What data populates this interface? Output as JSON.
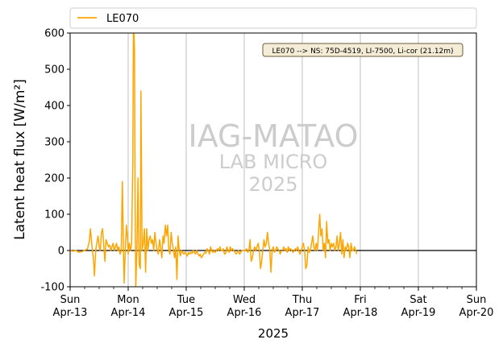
{
  "chart_data": {
    "type": "line",
    "ylabel": "Latent heat flux [W/m²]",
    "xlabel": "2025",
    "ylim": [
      -100,
      600
    ],
    "xlim_days": [
      "2025-04-13",
      "2025-04-20"
    ],
    "grid": "vertical-day-lines",
    "zero_line": 0,
    "legend": {
      "placement": "top-outside",
      "label": "LE070"
    },
    "annotation": "LE070 --> NS: 75D-4519, LI-7500, Li-cor (21.12m)",
    "watermark": [
      "IAG-MATAO",
      "LAB MICRO",
      "2025"
    ],
    "series_color": "#ffa500",
    "yticks": [
      -100,
      0,
      100,
      200,
      300,
      400,
      500,
      600
    ],
    "xticks": [
      {
        "day": "Sun",
        "date": "Apr-13"
      },
      {
        "day": "Mon",
        "date": "Apr-14"
      },
      {
        "day": "Tue",
        "date": "Apr-15"
      },
      {
        "day": "Wed",
        "date": "Apr-16"
      },
      {
        "day": "Thu",
        "date": "Apr-17"
      },
      {
        "day": "Fri",
        "date": "Apr-18"
      },
      {
        "day": "Sat",
        "date": "Apr-19"
      },
      {
        "day": "Sun",
        "date": "Apr-20"
      }
    ],
    "series": [
      {
        "name": "LE070",
        "x_unit": "days since 2025-04-13 00:00",
        "segments": [
          [
            [
              0.0,
              0
            ],
            [
              0.05,
              -2
            ],
            [
              0.1,
              0
            ],
            [
              0.15,
              -5
            ],
            [
              0.2,
              -3
            ],
            [
              0.25,
              0
            ],
            [
              0.3,
              5
            ],
            [
              0.33,
              25
            ],
            [
              0.35,
              60
            ],
            [
              0.38,
              5
            ],
            [
              0.4,
              -20
            ],
            [
              0.42,
              -70
            ],
            [
              0.44,
              0
            ],
            [
              0.46,
              20
            ],
            [
              0.48,
              40
            ],
            [
              0.5,
              10
            ],
            [
              0.52,
              0
            ],
            [
              0.54,
              50
            ],
            [
              0.56,
              60
            ],
            [
              0.58,
              10
            ],
            [
              0.6,
              -30
            ],
            [
              0.62,
              30
            ],
            [
              0.64,
              20
            ],
            [
              0.66,
              10
            ],
            [
              0.68,
              15
            ],
            [
              0.7,
              0
            ],
            [
              0.72,
              10
            ],
            [
              0.74,
              20
            ],
            [
              0.76,
              0
            ],
            [
              0.78,
              10
            ],
            [
              0.8,
              20
            ],
            [
              0.82,
              0
            ],
            [
              0.84,
              10
            ],
            [
              0.86,
              -10
            ],
            [
              0.88,
              0
            ],
            [
              0.9,
              190
            ],
            [
              0.92,
              -5
            ],
            [
              0.93,
              -90
            ],
            [
              0.95,
              0
            ],
            [
              0.97,
              70
            ],
            [
              0.99,
              30
            ],
            [
              1.0,
              -10
            ],
            [
              1.02,
              20
            ],
            [
              1.04,
              0
            ],
            [
              1.06,
              20
            ],
            [
              1.08,
              250
            ],
            [
              1.09,
              600
            ],
            [
              1.1,
              600
            ],
            [
              1.11,
              550
            ],
            [
              1.12,
              150
            ],
            [
              1.13,
              -100
            ],
            [
              1.15,
              0
            ],
            [
              1.17,
              200
            ],
            [
              1.18,
              30
            ],
            [
              1.19,
              -40
            ],
            [
              1.21,
              -50
            ],
            [
              1.22,
              440
            ],
            [
              1.24,
              0
            ],
            [
              1.26,
              20
            ],
            [
              1.28,
              60
            ],
            [
              1.3,
              -60
            ],
            [
              1.32,
              60
            ],
            [
              1.34,
              0
            ],
            [
              1.36,
              30
            ],
            [
              1.38,
              40
            ],
            [
              1.4,
              20
            ],
            [
              1.42,
              30
            ],
            [
              1.44,
              0
            ],
            [
              1.46,
              50
            ],
            [
              1.48,
              20
            ],
            [
              1.5,
              0
            ],
            [
              1.52,
              -10
            ],
            [
              1.54,
              30
            ],
            [
              1.56,
              10
            ],
            [
              1.58,
              -20
            ],
            [
              1.6,
              40
            ],
            [
              1.62,
              20
            ],
            [
              1.64,
              70
            ],
            [
              1.66,
              40
            ],
            [
              1.68,
              70
            ],
            [
              1.7,
              0
            ],
            [
              1.72,
              -10
            ],
            [
              1.74,
              50
            ],
            [
              1.76,
              20
            ],
            [
              1.78,
              0
            ],
            [
              1.8,
              -20
            ],
            [
              1.82,
              10
            ],
            [
              1.84,
              -80
            ],
            [
              1.86,
              40
            ],
            [
              1.88,
              0
            ],
            [
              1.9,
              -15
            ],
            [
              1.92,
              0
            ],
            [
              1.94,
              -5
            ],
            [
              1.96,
              -10
            ],
            [
              1.98,
              -5
            ],
            [
              2.0,
              -10
            ],
            [
              2.02,
              -15
            ],
            [
              2.04,
              -5
            ],
            [
              2.06,
              -10
            ],
            [
              2.08,
              -5
            ],
            [
              2.1,
              -8
            ],
            [
              2.12,
              0
            ],
            [
              2.14,
              -5
            ],
            [
              2.16,
              -10
            ],
            [
              2.18,
              0
            ],
            [
              2.2,
              -8
            ],
            [
              2.22,
              -15
            ],
            [
              2.24,
              -10
            ],
            [
              2.26,
              -20
            ],
            [
              2.28,
              -15
            ],
            [
              2.3,
              -10
            ],
            [
              2.32,
              -5
            ],
            [
              2.34,
              -8
            ],
            [
              2.36,
              5
            ],
            [
              2.38,
              0
            ],
            [
              2.4,
              -10
            ],
            [
              2.42,
              10
            ],
            [
              2.44,
              0
            ],
            [
              2.46,
              -5
            ],
            [
              2.48,
              0
            ],
            [
              2.5,
              -5
            ],
            [
              2.52,
              0
            ],
            [
              2.54,
              5
            ],
            [
              2.56,
              0
            ],
            [
              2.58,
              10
            ],
            [
              2.6,
              0
            ],
            [
              2.62,
              0
            ],
            [
              2.64,
              5
            ],
            [
              2.66,
              -10
            ],
            [
              2.68,
              -8
            ],
            [
              2.7,
              10
            ],
            [
              2.72,
              0
            ],
            [
              2.74,
              -5
            ],
            [
              2.76,
              10
            ],
            [
              2.78,
              0
            ],
            [
              2.8,
              5
            ],
            [
              2.82,
              0
            ],
            [
              2.84,
              -5
            ],
            [
              2.86,
              -10
            ],
            [
              2.88,
              -5
            ],
            [
              2.9,
              0
            ],
            [
              2.92,
              -10
            ],
            [
              2.94,
              -5
            ],
            [
              2.96,
              0
            ],
            [
              2.98,
              0
            ],
            [
              3.0,
              0
            ],
            [
              3.02,
              0
            ],
            [
              3.04,
              5
            ],
            [
              3.06,
              -5
            ],
            [
              3.08,
              0
            ],
            [
              3.1,
              30
            ],
            [
              3.12,
              -30
            ],
            [
              3.14,
              -20
            ],
            [
              3.16,
              0
            ],
            [
              3.18,
              10
            ],
            [
              3.2,
              0
            ],
            [
              3.22,
              10
            ],
            [
              3.24,
              20
            ],
            [
              3.26,
              0
            ],
            [
              3.28,
              -50
            ],
            [
              3.3,
              -30
            ],
            [
              3.32,
              0
            ],
            [
              3.34,
              30
            ],
            [
              3.36,
              10
            ],
            [
              3.38,
              20
            ],
            [
              3.4,
              50
            ],
            [
              3.42,
              20
            ],
            [
              3.44,
              0
            ],
            [
              3.46,
              -60
            ],
            [
              3.48,
              0
            ],
            [
              3.5,
              10
            ],
            [
              3.52,
              -5
            ],
            [
              3.54,
              0
            ],
            [
              3.56,
              10
            ],
            [
              3.58,
              5
            ],
            [
              3.6,
              0
            ],
            [
              3.62,
              -10
            ],
            [
              3.64,
              0
            ]
          ],
          [
            [
              3.66,
              0
            ],
            [
              3.68,
              10
            ],
            [
              3.7,
              0
            ],
            [
              3.72,
              5
            ],
            [
              3.74,
              -5
            ],
            [
              3.76,
              10
            ],
            [
              3.78,
              0
            ],
            [
              3.8,
              5
            ],
            [
              3.82,
              0
            ],
            [
              3.84,
              -5
            ],
            [
              3.86,
              0
            ],
            [
              3.88,
              5
            ],
            [
              3.9,
              0
            ],
            [
              3.92,
              10
            ],
            [
              3.94,
              0
            ],
            [
              3.96,
              -10
            ],
            [
              3.98,
              0
            ],
            [
              4.0,
              10
            ],
            [
              4.02,
              20
            ],
            [
              4.04,
              0
            ],
            [
              4.06,
              -50
            ],
            [
              4.08,
              -40
            ],
            [
              4.1,
              10
            ],
            [
              4.12,
              -5
            ],
            [
              4.14,
              0
            ],
            [
              4.16,
              20
            ],
            [
              4.18,
              40
            ],
            [
              4.2,
              10
            ],
            [
              4.22,
              0
            ],
            [
              4.24,
              20
            ],
            [
              4.26,
              0
            ],
            [
              4.28,
              50
            ],
            [
              4.3,
              100
            ],
            [
              4.32,
              40
            ],
            [
              4.34,
              60
            ],
            [
              4.36,
              0
            ],
            [
              4.38,
              20
            ],
            [
              4.4,
              -20
            ],
            [
              4.42,
              80
            ],
            [
              4.44,
              20
            ],
            [
              4.46,
              30
            ],
            [
              4.48,
              0
            ],
            [
              4.5,
              20
            ],
            [
              4.52,
              10
            ],
            [
              4.54,
              20
            ],
            [
              4.56,
              0
            ],
            [
              4.58,
              10
            ],
            [
              4.6,
              40
            ],
            [
              4.62,
              0
            ],
            [
              4.64,
              20
            ],
            [
              4.66,
              50
            ],
            [
              4.68,
              -10
            ],
            [
              4.7,
              30
            ],
            [
              4.72,
              -20
            ],
            [
              4.74,
              10
            ],
            [
              4.76,
              0
            ],
            [
              4.78,
              20
            ],
            [
              4.8,
              10
            ],
            [
              4.82,
              -20
            ],
            [
              4.84,
              20
            ],
            [
              4.86,
              0
            ],
            [
              4.88,
              0
            ],
            [
              4.9,
              10
            ],
            [
              4.92,
              0
            ],
            [
              4.94,
              -10
            ]
          ]
        ]
      }
    ]
  }
}
